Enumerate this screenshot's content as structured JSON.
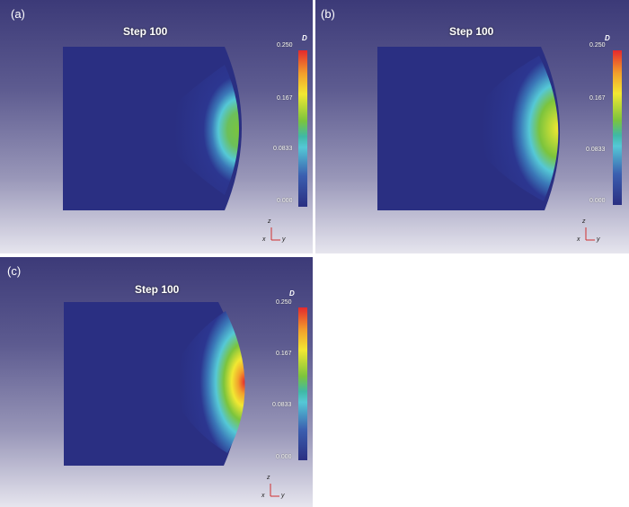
{
  "panels": [
    {
      "label": "(a)",
      "title": "Step 100",
      "colorbar_title": "D",
      "ticks": [
        "0.250",
        "0.167",
        "0.0833",
        "0.000"
      ],
      "axis_labels": {
        "z": "z",
        "x": "x",
        "y": "y"
      }
    },
    {
      "label": "(b)",
      "title": "Step 100",
      "colorbar_title": "D",
      "ticks": [
        "0.250",
        "0.167",
        "0.0833",
        "0.000"
      ],
      "axis_labels": {
        "z": "z",
        "x": "x",
        "y": "y"
      }
    },
    {
      "label": "(c)",
      "title": "Step 100",
      "colorbar_title": "D",
      "ticks": [
        "0.250",
        "0.167",
        "0.0833",
        "0.000"
      ],
      "axis_labels": {
        "z": "z",
        "x": "x",
        "y": "y"
      }
    }
  ],
  "colors": {
    "field_low": "#2a2f82",
    "cyan": "#55c8d6",
    "green": "#7cc43c",
    "yellow": "#f2e832",
    "red": "#e4292d"
  }
}
